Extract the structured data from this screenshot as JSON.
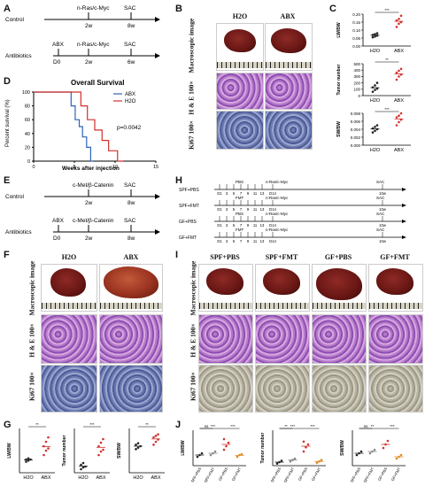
{
  "panels": {
    "A": "A",
    "B": "B",
    "C": "C",
    "D": "D",
    "E": "E",
    "F": "F",
    "G": "G",
    "H": "H",
    "I": "I",
    "J": "J"
  },
  "A": {
    "control": "Control",
    "antibiotics": "Antibiotics",
    "nras": "n-Ras/c-Myc",
    "sac": "SAC",
    "abx": "ABX",
    "d0": "D0",
    "w2": "2w",
    "w6": "6w",
    "w8": "8w"
  },
  "B": {
    "h2o": "H2O",
    "abx": "ABX",
    "row1": "Macroscopic image",
    "row2": "H & E 100×",
    "row3": "Ki67 100×"
  },
  "C": {
    "charts": [
      {
        "ylabel": "LW/BW",
        "ticks": [
          "0.20",
          "0.15",
          "0.10",
          "0.05",
          "0.00"
        ],
        "sig": "***"
      },
      {
        "ylabel": "Tumor number",
        "ticks": [
          "500",
          "400",
          "300",
          "200",
          "100",
          "0"
        ],
        "sig": "**"
      },
      {
        "ylabel": "SW/BW",
        "ticks": [
          "0.008",
          "0.006",
          "0.004",
          "0.002",
          "0.000"
        ],
        "sig": "***"
      }
    ],
    "xcats": [
      "H2O",
      "ABX"
    ]
  },
  "D": {
    "title": "Overall Survival",
    "ylabel": "Percent survival (%)",
    "xlabel": "Weeks after injection",
    "yticks": [
      "100",
      "80",
      "60",
      "40",
      "20",
      "0"
    ],
    "xticks": [
      "0",
      "5",
      "10",
      "15"
    ],
    "legend": [
      "ABX",
      "H2O"
    ],
    "pvalue": "p=0.0042"
  },
  "chart_data": [
    {
      "type": "line",
      "title": "Overall Survival",
      "xlabel": "Weeks after injection",
      "ylabel": "Percent survival (%)",
      "xlim": [
        0,
        15
      ],
      "ylim": [
        0,
        100
      ],
      "series": [
        {
          "name": "ABX",
          "x": [
            0,
            4.6,
            4.6,
            5.1,
            5.1,
            5.6,
            5.6,
            6.0,
            6.0,
            6.5,
            6.5,
            7.0,
            7.0,
            7.3
          ],
          "y": [
            100,
            100,
            80,
            80,
            60,
            60,
            50,
            50,
            35,
            35,
            20,
            20,
            0,
            0
          ]
        },
        {
          "name": "H2O",
          "x": [
            0,
            5.8,
            5.8,
            6.6,
            6.6,
            7.5,
            7.5,
            8.4,
            8.4,
            9.2,
            9.2,
            10.3,
            10.3,
            11.0
          ],
          "y": [
            100,
            100,
            80,
            80,
            60,
            60,
            45,
            45,
            30,
            30,
            15,
            15,
            0,
            0
          ]
        }
      ]
    },
    {
      "type": "scatter",
      "ylabel": "LW/BW",
      "categories": [
        "H2O",
        "ABX"
      ],
      "ylim": [
        0,
        0.2
      ],
      "series": [
        {
          "name": "H2O",
          "values": [
            0.055,
            0.06,
            0.065,
            0.07,
            0.075,
            0.08
          ]
        },
        {
          "name": "ABX",
          "values": [
            0.12,
            0.14,
            0.15,
            0.16,
            0.17,
            0.19
          ]
        }
      ]
    },
    {
      "type": "scatter",
      "ylabel": "Tumor number",
      "categories": [
        "H2O",
        "ABX"
      ],
      "ylim": [
        0,
        500
      ],
      "series": [
        {
          "name": "H2O",
          "values": [
            60,
            90,
            110,
            130,
            160,
            200
          ]
        },
        {
          "name": "ABX",
          "values": [
            250,
            300,
            330,
            360,
            390,
            420
          ]
        }
      ]
    },
    {
      "type": "scatter",
      "ylabel": "SW/BW",
      "categories": [
        "H2O",
        "ABX"
      ],
      "ylim": [
        0,
        0.008
      ],
      "series": [
        {
          "name": "H2O",
          "values": [
            0.0032,
            0.0036,
            0.004,
            0.0042,
            0.0046,
            0.005
          ]
        },
        {
          "name": "ABX",
          "values": [
            0.005,
            0.0058,
            0.0064,
            0.007,
            0.0074,
            0.008
          ]
        }
      ]
    }
  ],
  "E": {
    "control": "Control",
    "antibiotics": "Antibiotics",
    "model": "c-Met/β-Catenin",
    "sac": "SAC",
    "abx": "ABX",
    "d0": "D0",
    "w2": "2w",
    "w8": "8w"
  },
  "F": {
    "h2o": "H2O",
    "abx": "ABX",
    "row1": "Macroscopic image",
    "row2": "H & E 100×",
    "row3": "Ki67 100×"
  },
  "G": {
    "charts": [
      {
        "ylabel": "LW/BW",
        "sig": "**"
      },
      {
        "ylabel": "Tumor number",
        "sig": "***"
      },
      {
        "ylabel": "SW/BW",
        "sig": "**"
      }
    ],
    "xcats": [
      "H2O",
      "ABX"
    ]
  },
  "H": {
    "groups": [
      "SPF+PBS",
      "SPF+FMT",
      "GF+PBS",
      "GF+FMT"
    ],
    "treat": [
      "PBS",
      "FMT",
      "PBS",
      "FMT"
    ],
    "days": [
      "D1",
      "3",
      "5",
      "7",
      "9",
      "11",
      "13"
    ],
    "d14": "D14",
    "nras": "n-Ras/c-Myc",
    "sac": "SAC",
    "w10": "10w"
  },
  "I": {
    "cols": [
      "SPF+PBS",
      "SPF+FMT",
      "GF+PBS",
      "GF+FMT"
    ],
    "row1": "Macroscopic image",
    "row2": "H & E 100×",
    "row3": "Ki67 100×"
  },
  "J": {
    "charts": [
      {
        "ylabel": "LW/BW",
        "sigs": [
          "ns",
          "***",
          "***"
        ]
      },
      {
        "ylabel": "Tumor number",
        "sigs": [
          "**",
          "***",
          "***"
        ]
      },
      {
        "ylabel": "SW/BW",
        "sigs": [
          "ns",
          "**",
          "***"
        ]
      }
    ],
    "xcats": [
      "SPF+PBS",
      "SPF+FMT",
      "GF+PBS",
      "GF+FMT"
    ]
  }
}
